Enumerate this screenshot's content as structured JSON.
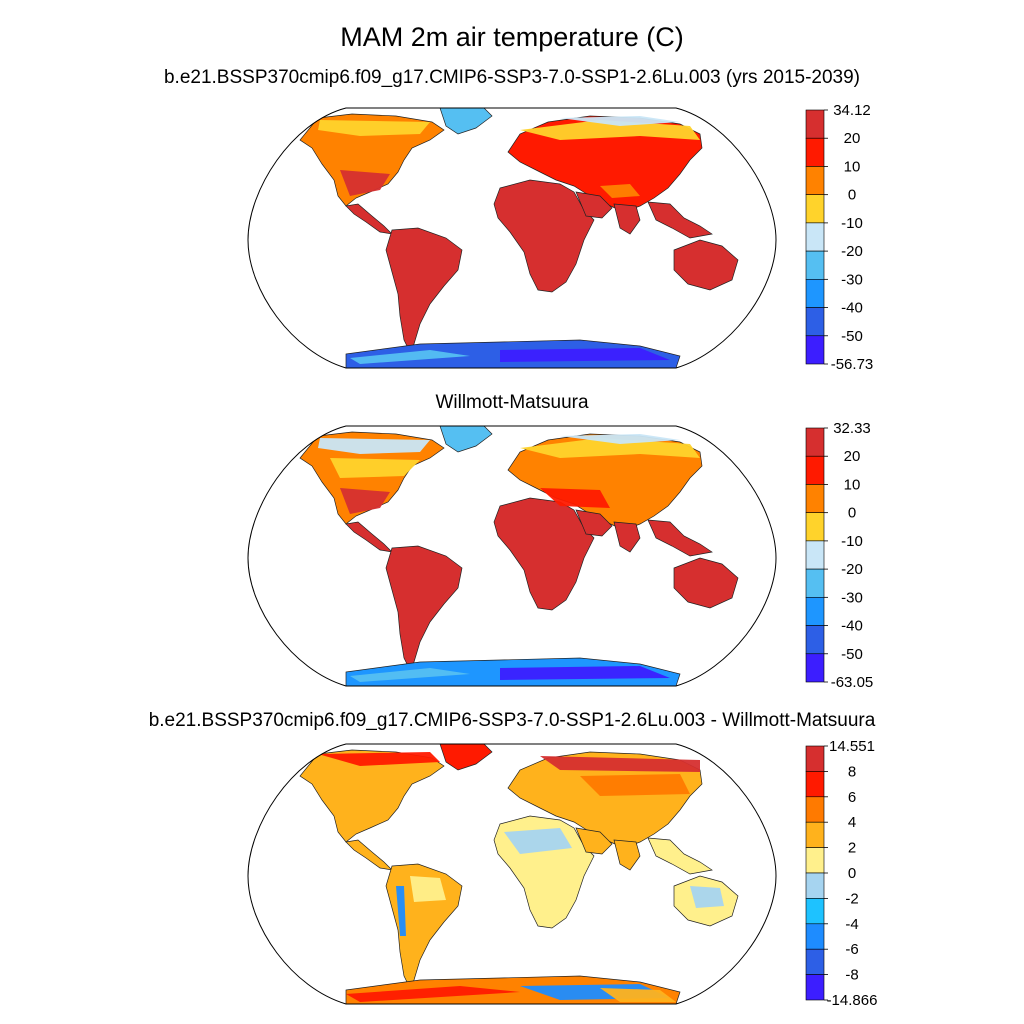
{
  "title": "MAM 2m air temperature (C)",
  "panels": [
    {
      "id": "model",
      "subtitle": "b.e21.BSSP370cmip6.f09_g17.CMIP6-SSP3-7.0-SSP1-2.6Lu.003 (yrs 2015-2039)",
      "colorbar": {
        "labels": [
          "34.12",
          "20",
          "10",
          "0",
          "-10",
          "-20",
          "-30",
          "-40",
          "-50",
          "-56.73"
        ],
        "colors": [
          "#d62f2f",
          "#ff1a00",
          "#ff8200",
          "#ffd32b",
          "#c9e6f7",
          "#55bff2",
          "#1e96ff",
          "#2d5fe6",
          "#3c1eff"
        ]
      }
    },
    {
      "id": "obs",
      "subtitle": "Willmott-Matsuura",
      "colorbar": {
        "labels": [
          "32.33",
          "20",
          "10",
          "0",
          "-10",
          "-20",
          "-30",
          "-40",
          "-50",
          "-63.05"
        ],
        "colors": [
          "#d62f2f",
          "#ff1a00",
          "#ff8200",
          "#ffd32b",
          "#c9e6f7",
          "#55bff2",
          "#1e96ff",
          "#2d5fe6",
          "#3c1eff"
        ]
      }
    },
    {
      "id": "diff",
      "subtitle": "b.e21.BSSP370cmip6.f09_g17.CMIP6-SSP3-7.0-SSP1-2.6Lu.003 - Willmott-Matsuura",
      "colorbar": {
        "labels": [
          "14.551",
          "8",
          "6",
          "4",
          "2",
          "0",
          "-2",
          "-4",
          "-6",
          "-8",
          "-14.866"
        ],
        "colors": [
          "#d62f2f",
          "#ff1a00",
          "#ff7a00",
          "#ffb21c",
          "#fff08c",
          "#a6d4f0",
          "#1ec2ff",
          "#1e8cff",
          "#2d5fe6",
          "#3c1eff"
        ]
      }
    }
  ]
}
